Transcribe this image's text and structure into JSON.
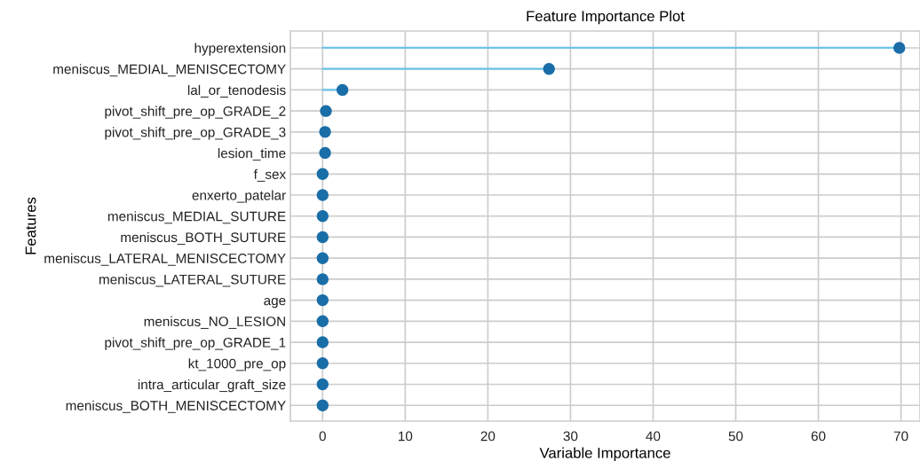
{
  "chart_data": {
    "type": "lollipop",
    "orientation": "horizontal",
    "title": "Feature Importance Plot",
    "xlabel": "Variable Importance",
    "ylabel": "Features",
    "categories": [
      "hyperextension",
      "meniscus_MEDIAL_MENISCECTOMY",
      "lal_or_tenodesis",
      "pivot_shift_pre_op_GRADE_2",
      "pivot_shift_pre_op_GRADE_3",
      "lesion_time",
      "f_sex",
      "enxerto_patelar",
      "meniscus_MEDIAL_SUTURE",
      "meniscus_BOTH_SUTURE",
      "meniscus_LATERAL_MENISCECTOMY",
      "meniscus_LATERAL_SUTURE",
      "age",
      "meniscus_NO_LESION",
      "pivot_shift_pre_op_GRADE_1",
      "kt_1000_pre_op",
      "intra_articular_graft_size",
      "meniscus_BOTH_MENISCECTOMY"
    ],
    "series": [
      {
        "color": "#1a6ea8",
        "values": [
          69.8,
          27.4,
          2.4,
          0.4,
          0.3,
          0.3,
          0,
          0,
          0,
          0,
          0,
          0,
          0,
          0,
          0,
          0,
          0,
          0
        ]
      }
    ],
    "xlim": [
      -3.9,
      72.3
    ],
    "xticks": [
      0,
      10,
      20,
      30,
      40,
      50,
      60,
      70
    ],
    "grid": true,
    "marker": "circle"
  }
}
